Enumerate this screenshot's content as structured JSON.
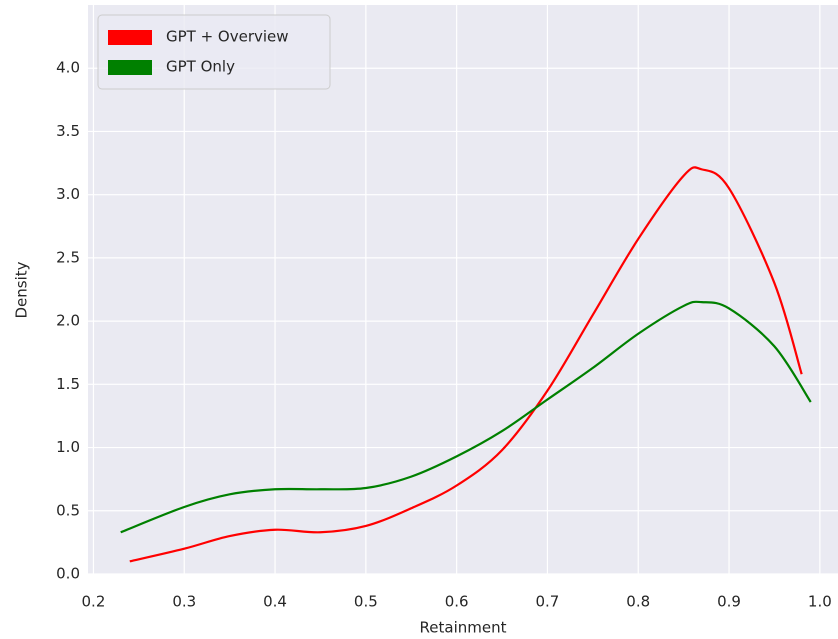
{
  "chart_data": {
    "type": "line",
    "x_label": "Retainment",
    "y_label": "Density",
    "xlim": [
      0.194,
      1.02
    ],
    "ylim": [
      0,
      4.5
    ],
    "xticks": [
      0.2,
      0.3,
      0.4,
      0.5,
      0.6,
      0.7,
      0.8,
      0.9,
      {
        "value": 1,
        "label": "1.0"
      }
    ],
    "yticks": [
      {
        "value": 0,
        "label": "0.0"
      },
      0.5,
      {
        "value": 1,
        "label": "1.0"
      },
      1.5,
      {
        "value": 2,
        "label": "2.0"
      },
      2.5,
      {
        "value": 3,
        "label": "3.0"
      },
      3.5,
      {
        "value": 4,
        "label": "4.0"
      }
    ],
    "grid": true,
    "legend": "upper left",
    "series": [
      {
        "name": "GPT + Overview",
        "color": "#ff0000",
        "x": [
          0.24,
          0.3,
          0.35,
          0.4,
          0.45,
          0.5,
          0.55,
          0.6,
          0.65,
          0.7,
          0.75,
          0.8,
          0.85,
          0.87,
          0.9,
          0.95,
          0.98
        ],
        "values": [
          0.1,
          0.2,
          0.3,
          0.35,
          0.33,
          0.38,
          0.52,
          0.7,
          0.98,
          1.45,
          2.05,
          2.65,
          3.15,
          3.2,
          3.05,
          2.3,
          1.58
        ]
      },
      {
        "name": "GPT Only",
        "color": "#008000",
        "x": [
          0.23,
          0.3,
          0.35,
          0.4,
          0.45,
          0.5,
          0.55,
          0.6,
          0.65,
          0.7,
          0.75,
          0.8,
          0.85,
          0.87,
          0.9,
          0.95,
          0.99
        ],
        "values": [
          0.33,
          0.53,
          0.63,
          0.67,
          0.67,
          0.68,
          0.77,
          0.93,
          1.13,
          1.38,
          1.63,
          1.9,
          2.12,
          2.15,
          2.1,
          1.8,
          1.36
        ]
      }
    ]
  }
}
